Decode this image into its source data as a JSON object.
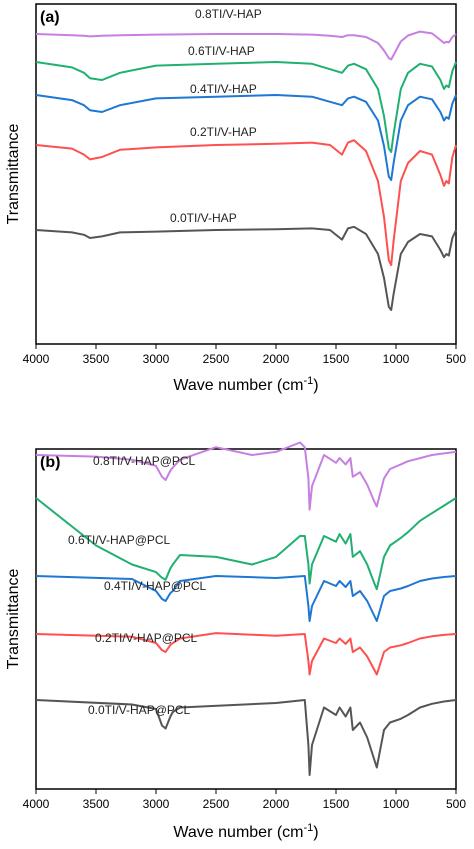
{
  "chart_data": [
    {
      "type": "line",
      "panel_label": "(a)",
      "xlabel": "Wave number (cm",
      "xlabel_sup": "-1",
      "xlabel_close": ")",
      "ylabel": "Transmittance",
      "xlim": [
        4000,
        500
      ],
      "xticks": [
        "4000",
        "3500",
        "3000",
        "2500",
        "2000",
        "1500",
        "1000",
        "500"
      ],
      "series": [
        {
          "name": "0.0TI/V-HAP",
          "color": "#555555",
          "offset": 0.5,
          "x": [
            4000,
            3700,
            3600,
            3550,
            3450,
            3300,
            3000,
            2500,
            2000,
            1700,
            1550,
            1450,
            1400,
            1350,
            1250,
            1150,
            1100,
            1060,
            1040,
            1020,
            960,
            900,
            800,
            700,
            630,
            600,
            580,
            560,
            530,
            500
          ],
          "y": [
            0.0,
            0.03,
            0.06,
            0.1,
            0.08,
            0.03,
            0.02,
            0.0,
            -0.01,
            -0.02,
            0.0,
            0.12,
            -0.02,
            -0.04,
            0.05,
            0.3,
            0.6,
            0.96,
            1.0,
            0.8,
            0.3,
            0.15,
            0.05,
            0.08,
            0.25,
            0.34,
            0.3,
            0.32,
            0.1,
            0.0
          ]
        },
        {
          "name": "0.2TI/V-HAP",
          "color": "#ff5050",
          "offset": 0.0,
          "x": [
            4000,
            3700,
            3600,
            3550,
            3450,
            3300,
            3000,
            2500,
            2000,
            1700,
            1550,
            1450,
            1400,
            1350,
            1250,
            1150,
            1100,
            1060,
            1040,
            1020,
            960,
            900,
            800,
            700,
            630,
            600,
            580,
            560,
            530,
            500
          ],
          "y": [
            0.0,
            0.03,
            0.08,
            0.12,
            0.1,
            0.04,
            0.02,
            0.0,
            -0.01,
            -0.02,
            0.0,
            0.08,
            -0.02,
            -0.04,
            0.05,
            0.3,
            0.6,
            0.96,
            1.0,
            0.8,
            0.3,
            0.15,
            0.05,
            0.08,
            0.25,
            0.34,
            0.3,
            0.32,
            0.1,
            0.0
          ]
        },
        {
          "name": "0.4TI/V-HAP",
          "color": "#1f77d4",
          "offset": 0.0,
          "x": [
            4000,
            3700,
            3600,
            3550,
            3450,
            3300,
            3000,
            2500,
            2000,
            1700,
            1550,
            1450,
            1400,
            1350,
            1250,
            1150,
            1100,
            1060,
            1040,
            1020,
            960,
            900,
            800,
            700,
            630,
            600,
            580,
            560,
            530,
            500
          ],
          "y": [
            0.0,
            0.06,
            0.12,
            0.18,
            0.2,
            0.12,
            0.04,
            0.02,
            0.0,
            0.02,
            0.08,
            0.12,
            0.04,
            0.02,
            0.08,
            0.3,
            0.6,
            0.96,
            1.0,
            0.8,
            0.3,
            0.12,
            0.02,
            0.05,
            0.2,
            0.3,
            0.26,
            0.28,
            0.1,
            0.0
          ]
        },
        {
          "name": "0.6TI/V-HAP",
          "color": "#20b070",
          "offset": 0.0,
          "x": [
            4000,
            3700,
            3600,
            3550,
            3450,
            3300,
            3000,
            2500,
            2000,
            1700,
            1550,
            1450,
            1400,
            1350,
            1250,
            1150,
            1100,
            1060,
            1040,
            1020,
            960,
            900,
            800,
            700,
            630,
            600,
            580,
            560,
            530,
            500
          ],
          "y": [
            0.0,
            0.06,
            0.12,
            0.18,
            0.2,
            0.12,
            0.04,
            0.02,
            0.0,
            0.02,
            0.08,
            0.12,
            0.04,
            0.02,
            0.08,
            0.3,
            0.6,
            0.96,
            1.0,
            0.8,
            0.3,
            0.12,
            0.02,
            0.05,
            0.2,
            0.3,
            0.26,
            0.28,
            0.1,
            0.0
          ]
        },
        {
          "name": "0.8TI/V-HAP",
          "color": "#c77fe0",
          "offset": 0.0,
          "x": [
            4000,
            3700,
            3600,
            3550,
            3450,
            3300,
            3000,
            2500,
            2000,
            1700,
            1550,
            1450,
            1400,
            1350,
            1250,
            1150,
            1100,
            1060,
            1040,
            1020,
            960,
            900,
            800,
            700,
            630,
            600,
            580,
            560,
            530,
            500
          ],
          "y": [
            0.0,
            0.04,
            0.06,
            0.08,
            0.06,
            0.04,
            0.02,
            0.0,
            0.0,
            0.02,
            0.06,
            0.1,
            0.04,
            0.04,
            0.1,
            0.3,
            0.55,
            0.8,
            0.85,
            0.7,
            0.25,
            0.05,
            -0.08,
            -0.02,
            0.2,
            0.3,
            0.26,
            0.28,
            0.1,
            0.0
          ]
        }
      ]
    },
    {
      "type": "line",
      "panel_label": "(b)",
      "xlabel": "Wave number (cm",
      "xlabel_sup": "-1",
      "xlabel_close": ")",
      "ylabel": "Transmittance",
      "xlim": [
        4000,
        500
      ],
      "xticks": [
        "4000",
        "3500",
        "3000",
        "2500",
        "2000",
        "1500",
        "1000",
        "500"
      ],
      "series": [
        {
          "name": "0.0TI/V-HAP@PCL",
          "color": "#555555",
          "x": [
            4000,
            3200,
            3000,
            2950,
            2920,
            2880,
            2860,
            2800,
            2000,
            1760,
            1730,
            1720,
            1700,
            1600,
            1500,
            1470,
            1420,
            1380,
            1360,
            1300,
            1240,
            1180,
            1160,
            1100,
            1050,
            960,
            900,
            800,
            700,
            600,
            500
          ],
          "y": [
            0.0,
            0.06,
            0.12,
            0.34,
            0.38,
            0.22,
            0.16,
            0.1,
            0.04,
            0.0,
            0.6,
            1.0,
            0.6,
            0.1,
            0.2,
            0.1,
            0.22,
            0.1,
            0.4,
            0.3,
            0.5,
            0.8,
            0.9,
            0.4,
            0.3,
            0.25,
            0.2,
            0.1,
            0.05,
            0.02,
            0.0
          ]
        },
        {
          "name": "0.2TI/V-HAP@PCL",
          "color": "#ff5050",
          "x": [
            4000,
            3200,
            3000,
            2950,
            2920,
            2880,
            2860,
            2800,
            2500,
            2000,
            1760,
            1730,
            1720,
            1700,
            1600,
            1500,
            1470,
            1420,
            1380,
            1360,
            1300,
            1240,
            1180,
            1160,
            1100,
            1050,
            960,
            900,
            800,
            700,
            600,
            500
          ],
          "y": [
            0.0,
            0.06,
            0.2,
            0.36,
            0.4,
            0.24,
            0.2,
            0.1,
            -0.02,
            0.04,
            0.0,
            0.6,
            0.9,
            0.6,
            0.1,
            0.2,
            0.1,
            0.22,
            0.1,
            0.4,
            0.3,
            0.5,
            0.8,
            0.9,
            0.4,
            0.3,
            0.25,
            0.2,
            0.1,
            0.05,
            0.02,
            0.0
          ]
        },
        {
          "name": "0.4TI/V-HAP@PCL",
          "color": "#1f77d4",
          "x": [
            4000,
            3200,
            3000,
            2950,
            2920,
            2880,
            2860,
            2800,
            2500,
            2000,
            1760,
            1730,
            1720,
            1700,
            1600,
            1500,
            1470,
            1420,
            1380,
            1360,
            1300,
            1240,
            1180,
            1160,
            1100,
            1050,
            960,
            900,
            800,
            700,
            600,
            500
          ],
          "y": [
            0.0,
            0.06,
            0.3,
            0.46,
            0.5,
            0.34,
            0.3,
            0.1,
            0.0,
            0.04,
            0.0,
            0.6,
            0.9,
            0.6,
            0.1,
            0.2,
            0.1,
            0.22,
            0.1,
            0.4,
            0.3,
            0.5,
            0.8,
            0.9,
            0.4,
            0.3,
            0.25,
            0.2,
            0.1,
            0.05,
            0.02,
            0.0
          ]
        },
        {
          "name": "0.6TI/V-HAP@PCL",
          "color": "#20b070",
          "x": [
            4000,
            3500,
            3200,
            3000,
            2950,
            2920,
            2880,
            2860,
            2800,
            2500,
            2200,
            2000,
            1800,
            1760,
            1730,
            1720,
            1700,
            1600,
            1500,
            1470,
            1420,
            1380,
            1360,
            1300,
            1240,
            1180,
            1160,
            1100,
            1050,
            960,
            900,
            800,
            700,
            600,
            500
          ],
          "y": [
            0.0,
            0.5,
            0.7,
            0.78,
            0.84,
            0.86,
            0.74,
            0.7,
            0.6,
            0.62,
            0.7,
            0.62,
            0.4,
            0.4,
            0.7,
            0.9,
            0.7,
            0.4,
            0.46,
            0.38,
            0.48,
            0.38,
            0.62,
            0.56,
            0.7,
            0.9,
            0.96,
            0.62,
            0.5,
            0.42,
            0.36,
            0.24,
            0.16,
            0.08,
            0.0
          ]
        },
        {
          "name": "0.8TI/V-HAP@PCL",
          "color": "#c77fe0",
          "x": [
            4000,
            3500,
            3200,
            3000,
            2950,
            2920,
            2880,
            2860,
            2800,
            2500,
            2200,
            2000,
            1800,
            1760,
            1730,
            1720,
            1700,
            1600,
            1500,
            1470,
            1420,
            1380,
            1360,
            1300,
            1240,
            1180,
            1160,
            1100,
            1050,
            960,
            900,
            800,
            700,
            600,
            500
          ],
          "y": [
            0.0,
            0.02,
            0.06,
            0.14,
            0.28,
            0.32,
            0.2,
            0.16,
            0.06,
            -0.1,
            0.0,
            -0.04,
            -0.16,
            -0.1,
            0.3,
            0.7,
            0.4,
            0.0,
            0.1,
            0.04,
            0.12,
            0.04,
            0.28,
            0.22,
            0.38,
            0.6,
            0.66,
            0.3,
            0.18,
            0.12,
            0.08,
            0.04,
            0.0,
            -0.02,
            -0.04
          ]
        }
      ]
    }
  ]
}
